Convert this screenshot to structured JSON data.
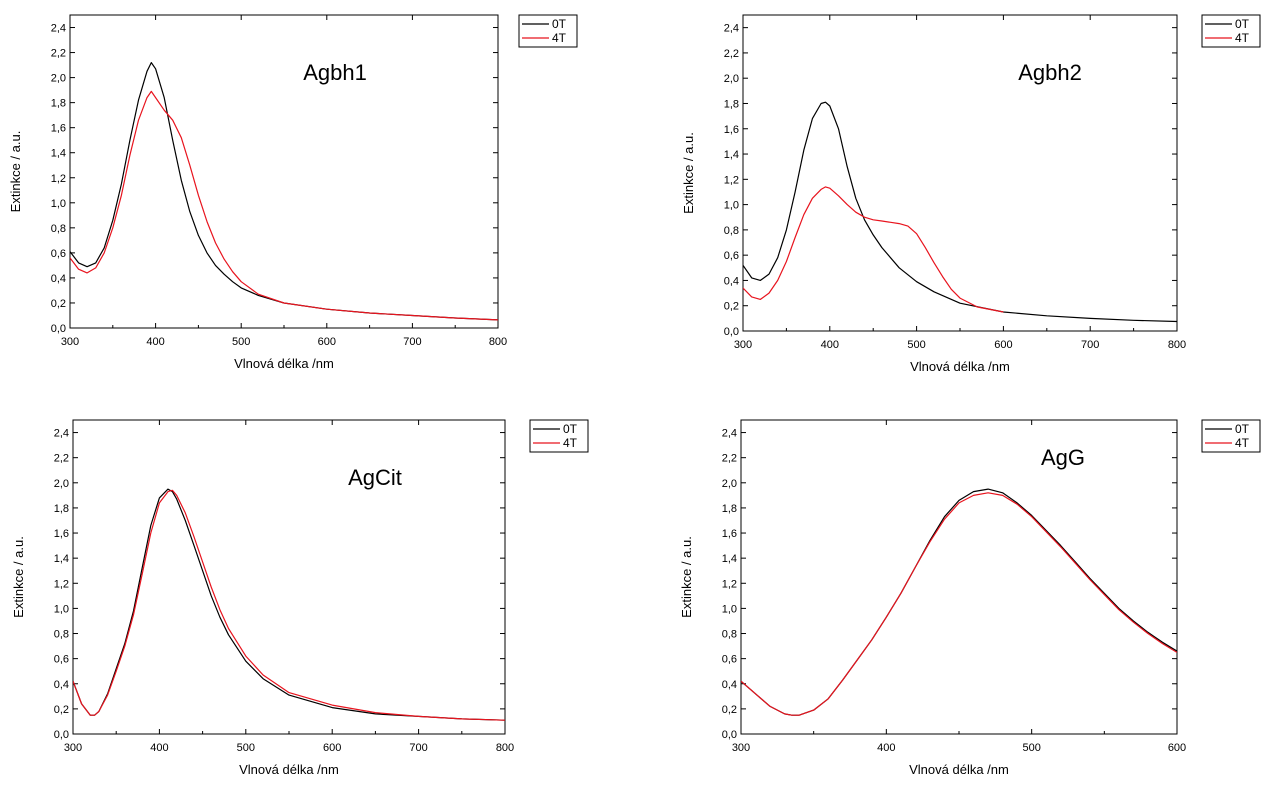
{
  "colors": {
    "series_0T": "#000000",
    "series_4T": "#e8141e",
    "axes": "#000000",
    "background": "#ffffff"
  },
  "chart_data": [
    {
      "type": "line",
      "title": "Agbh1",
      "xlabel": "Vlnová délka /nm",
      "ylabel": "Extinkce / a.u.",
      "xlim": [
        300,
        800
      ],
      "ylim": [
        0,
        2.5
      ],
      "xticks": [
        300,
        400,
        500,
        600,
        700,
        800
      ],
      "xtick_labels": [
        "300",
        "400",
        "500",
        "600",
        "700",
        "800"
      ],
      "yticks": [
        0,
        0.2,
        0.4,
        0.6,
        0.8,
        1.0,
        1.2,
        1.4,
        1.6,
        1.8,
        2.0,
        2.2,
        2.4
      ],
      "ytick_labels": [
        "0,0",
        "0,2",
        "0,4",
        "0,6",
        "0,8",
        "1,0",
        "1,2",
        "1,4",
        "1,6",
        "1,8",
        "2,0",
        "2,2",
        "2,4"
      ],
      "grid": false,
      "legend": "top-right outside",
      "series": [
        {
          "name": "0T",
          "color": "#000000",
          "x": [
            300,
            310,
            320,
            330,
            340,
            350,
            360,
            370,
            380,
            390,
            395,
            400,
            410,
            420,
            430,
            440,
            450,
            460,
            470,
            480,
            490,
            500,
            520,
            550,
            600,
            650,
            700,
            750,
            800
          ],
          "y": [
            0.61,
            0.52,
            0.49,
            0.52,
            0.64,
            0.86,
            1.15,
            1.5,
            1.82,
            2.05,
            2.12,
            2.07,
            1.84,
            1.5,
            1.18,
            0.93,
            0.74,
            0.6,
            0.5,
            0.43,
            0.37,
            0.32,
            0.26,
            0.2,
            0.15,
            0.12,
            0.1,
            0.08,
            0.065
          ]
        },
        {
          "name": "4T",
          "color": "#e8141e",
          "x": [
            300,
            310,
            320,
            330,
            340,
            350,
            360,
            370,
            380,
            390,
            395,
            400,
            410,
            420,
            430,
            440,
            450,
            460,
            470,
            480,
            490,
            500,
            520,
            550,
            600,
            650,
            700,
            750,
            800
          ],
          "y": [
            0.56,
            0.47,
            0.44,
            0.48,
            0.6,
            0.8,
            1.06,
            1.38,
            1.66,
            1.84,
            1.89,
            1.84,
            1.74,
            1.66,
            1.52,
            1.3,
            1.06,
            0.85,
            0.68,
            0.55,
            0.45,
            0.37,
            0.27,
            0.2,
            0.15,
            0.12,
            0.1,
            0.08,
            0.065
          ]
        }
      ]
    },
    {
      "type": "line",
      "title": "Agbh2",
      "xlabel": "Vlnová délka /nm",
      "ylabel": "Extinkce / a.u.",
      "xlim": [
        300,
        800
      ],
      "ylim": [
        0,
        2.5
      ],
      "xticks": [
        300,
        400,
        500,
        600,
        700,
        800
      ],
      "xtick_labels": [
        "300",
        "400",
        "500",
        "600",
        "700",
        "800"
      ],
      "yticks": [
        0,
        0.2,
        0.4,
        0.6,
        0.8,
        1.0,
        1.2,
        1.4,
        1.6,
        1.8,
        2.0,
        2.2,
        2.4
      ],
      "ytick_labels": [
        "0,0",
        "0,2",
        "0,4",
        "0,6",
        "0,8",
        "1,0",
        "1,2",
        "1,4",
        "1,6",
        "1,8",
        "2,0",
        "2,2",
        "2,4"
      ],
      "grid": false,
      "legend": "top-right outside",
      "series": [
        {
          "name": "0T",
          "color": "#000000",
          "x": [
            300,
            310,
            320,
            330,
            340,
            350,
            360,
            370,
            380,
            390,
            395,
            400,
            410,
            420,
            430,
            440,
            450,
            460,
            480,
            500,
            520,
            550,
            600,
            650,
            700,
            750,
            800
          ],
          "y": [
            0.52,
            0.42,
            0.4,
            0.45,
            0.58,
            0.8,
            1.1,
            1.43,
            1.68,
            1.8,
            1.81,
            1.78,
            1.6,
            1.3,
            1.05,
            0.88,
            0.76,
            0.66,
            0.5,
            0.39,
            0.31,
            0.22,
            0.15,
            0.12,
            0.1,
            0.085,
            0.075
          ]
        },
        {
          "name": "4T",
          "color": "#e8141e",
          "x": [
            300,
            310,
            320,
            330,
            340,
            350,
            360,
            370,
            380,
            390,
            395,
            400,
            410,
            420,
            430,
            440,
            450,
            460,
            470,
            480,
            490,
            500,
            510,
            520,
            530,
            540,
            550,
            570,
            600
          ],
          "y": [
            0.34,
            0.27,
            0.25,
            0.3,
            0.4,
            0.55,
            0.74,
            0.92,
            1.05,
            1.12,
            1.14,
            1.13,
            1.07,
            1.0,
            0.94,
            0.9,
            0.88,
            0.87,
            0.86,
            0.85,
            0.83,
            0.77,
            0.66,
            0.54,
            0.43,
            0.33,
            0.26,
            0.19,
            0.15
          ]
        }
      ]
    },
    {
      "type": "line",
      "title": "AgCit",
      "xlabel": "Vlnová délka /nm",
      "ylabel": "Extinkce / a.u.",
      "xlim": [
        300,
        800
      ],
      "ylim": [
        0,
        2.5
      ],
      "xticks": [
        300,
        400,
        500,
        600,
        700,
        800
      ],
      "xtick_labels": [
        "300",
        "400",
        "500",
        "600",
        "700",
        "800"
      ],
      "yticks": [
        0,
        0.2,
        0.4,
        0.6,
        0.8,
        1.0,
        1.2,
        1.4,
        1.6,
        1.8,
        2.0,
        2.2,
        2.4
      ],
      "ytick_labels": [
        "0,0",
        "0,2",
        "0,4",
        "0,6",
        "0,8",
        "1,0",
        "1,2",
        "1,4",
        "1,6",
        "1,8",
        "2,0",
        "2,2",
        "2,4"
      ],
      "grid": false,
      "legend": "top-right outside",
      "series": [
        {
          "name": "0T",
          "color": "#000000",
          "x": [
            300,
            310,
            320,
            325,
            330,
            340,
            350,
            360,
            370,
            380,
            390,
            400,
            410,
            415,
            420,
            430,
            440,
            450,
            460,
            470,
            480,
            500,
            520,
            550,
            600,
            650,
            700,
            750,
            800
          ],
          "y": [
            0.42,
            0.24,
            0.15,
            0.15,
            0.18,
            0.32,
            0.52,
            0.72,
            0.98,
            1.32,
            1.66,
            1.88,
            1.95,
            1.93,
            1.87,
            1.7,
            1.5,
            1.3,
            1.1,
            0.93,
            0.79,
            0.58,
            0.44,
            0.31,
            0.21,
            0.16,
            0.14,
            0.12,
            0.11
          ]
        },
        {
          "name": "4T",
          "color": "#e8141e",
          "x": [
            300,
            310,
            320,
            325,
            330,
            340,
            350,
            360,
            370,
            380,
            390,
            400,
            410,
            415,
            420,
            430,
            440,
            450,
            460,
            470,
            480,
            500,
            520,
            550,
            600,
            650,
            700,
            750,
            800
          ],
          "y": [
            0.42,
            0.24,
            0.15,
            0.15,
            0.18,
            0.31,
            0.5,
            0.7,
            0.95,
            1.27,
            1.6,
            1.84,
            1.93,
            1.94,
            1.9,
            1.76,
            1.57,
            1.37,
            1.17,
            0.99,
            0.84,
            0.62,
            0.47,
            0.33,
            0.23,
            0.17,
            0.14,
            0.12,
            0.11
          ]
        }
      ]
    },
    {
      "type": "line",
      "title": "AgG",
      "xlabel": "Vlnová délka /nm",
      "ylabel": "Extinkce / a.u.",
      "xlim": [
        300,
        600
      ],
      "ylim": [
        0,
        2.5
      ],
      "xticks": [
        300,
        400,
        500,
        600
      ],
      "xtick_labels": [
        "300",
        "400",
        "500",
        "600"
      ],
      "yticks": [
        0,
        0.2,
        0.4,
        0.6,
        0.8,
        1.0,
        1.2,
        1.4,
        1.6,
        1.8,
        2.0,
        2.2,
        2.4
      ],
      "ytick_labels": [
        "0,0",
        "0,2",
        "0,4",
        "0,6",
        "0,8",
        "1,0",
        "1,2",
        "1,4",
        "1,6",
        "1,8",
        "2,0",
        "2,2",
        "2,4"
      ],
      "grid": false,
      "legend": "top-right outside",
      "series": [
        {
          "name": "0T",
          "color": "#000000",
          "x": [
            300,
            310,
            320,
            330,
            335,
            340,
            350,
            360,
            370,
            380,
            390,
            400,
            410,
            420,
            430,
            440,
            450,
            460,
            470,
            480,
            490,
            500,
            510,
            520,
            530,
            540,
            550,
            560,
            570,
            580,
            590,
            600
          ],
          "y": [
            0.42,
            0.32,
            0.22,
            0.16,
            0.15,
            0.15,
            0.19,
            0.28,
            0.43,
            0.59,
            0.75,
            0.93,
            1.12,
            1.33,
            1.54,
            1.73,
            1.86,
            1.93,
            1.95,
            1.92,
            1.84,
            1.74,
            1.62,
            1.5,
            1.37,
            1.24,
            1.12,
            1.0,
            0.9,
            0.81,
            0.73,
            0.66
          ]
        },
        {
          "name": "4T",
          "color": "#e8141e",
          "x": [
            300,
            310,
            320,
            330,
            335,
            340,
            350,
            360,
            370,
            380,
            390,
            400,
            410,
            420,
            430,
            440,
            450,
            460,
            470,
            480,
            490,
            500,
            510,
            520,
            530,
            540,
            550,
            560,
            570,
            580,
            590,
            600
          ],
          "y": [
            0.42,
            0.32,
            0.22,
            0.16,
            0.15,
            0.15,
            0.19,
            0.28,
            0.43,
            0.59,
            0.75,
            0.93,
            1.12,
            1.33,
            1.53,
            1.71,
            1.84,
            1.9,
            1.92,
            1.9,
            1.83,
            1.73,
            1.61,
            1.49,
            1.36,
            1.23,
            1.11,
            0.99,
            0.89,
            0.8,
            0.72,
            0.65
          ]
        }
      ]
    }
  ]
}
